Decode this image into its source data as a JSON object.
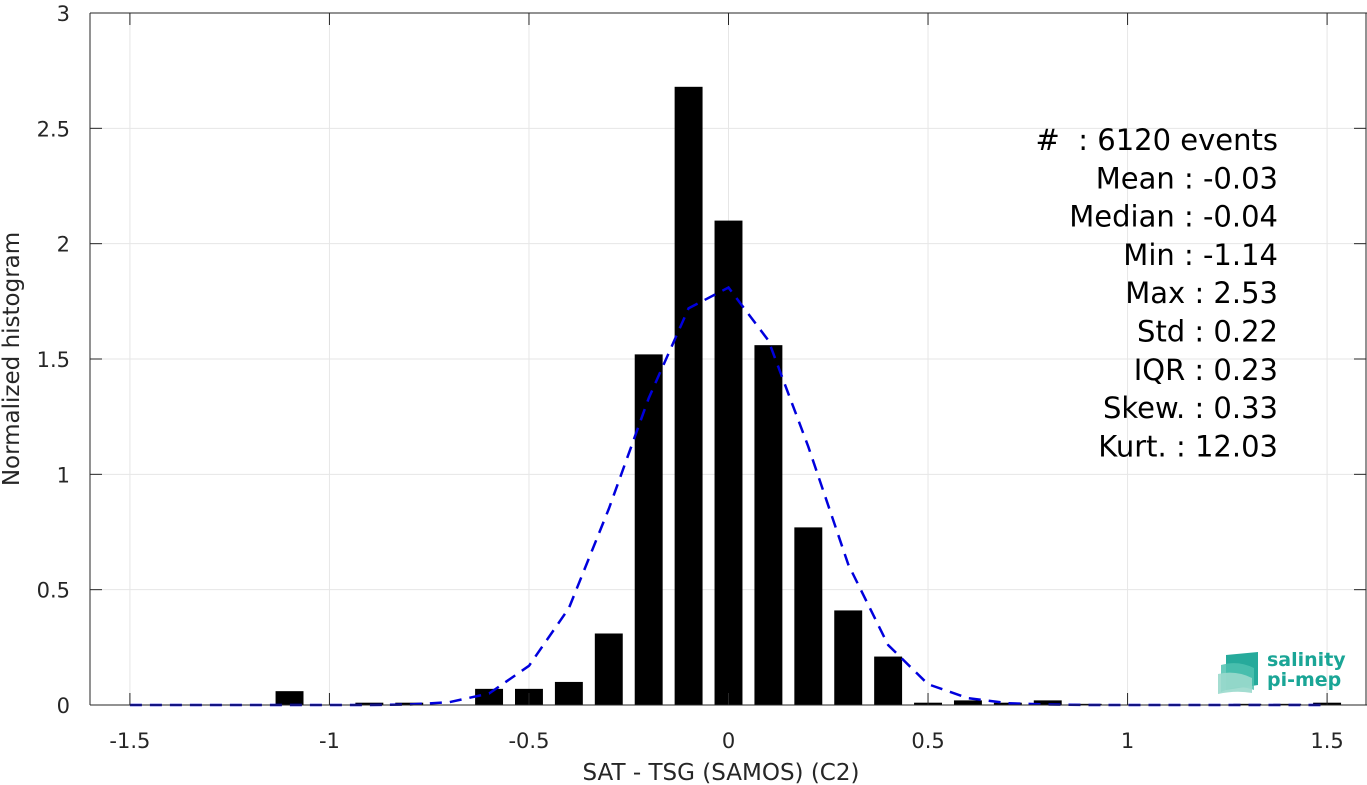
{
  "chart_data": {
    "type": "bar",
    "xlabel": "SAT - TSG (SAMOS) (C2)",
    "ylabel": "Normalized histogram",
    "xlim": [
      -1.6,
      1.6
    ],
    "ylim": [
      0,
      3
    ],
    "grid": true,
    "xticks": [
      "-1.5",
      "-1",
      "-0.5",
      "0",
      "0.5",
      "1",
      "1.5"
    ],
    "xtick_values": [
      -1.5,
      -1,
      -0.5,
      0,
      0.5,
      1,
      1.5
    ],
    "yticks": [
      "0",
      "0.5",
      "1",
      "1.5",
      "2",
      "2.5",
      "3"
    ],
    "ytick_values": [
      0,
      0.5,
      1,
      1.5,
      2,
      2.5,
      3
    ],
    "bar_width": 0.07,
    "bar_color": "#000000",
    "bars": [
      {
        "x": -1.1,
        "y": 0.06
      },
      {
        "x": -0.9,
        "y": 0.01
      },
      {
        "x": -0.8,
        "y": 0.01
      },
      {
        "x": -0.6,
        "y": 0.07
      },
      {
        "x": -0.5,
        "y": 0.07
      },
      {
        "x": -0.4,
        "y": 0.1
      },
      {
        "x": -0.3,
        "y": 0.31
      },
      {
        "x": -0.2,
        "y": 1.52
      },
      {
        "x": -0.1,
        "y": 2.68
      },
      {
        "x": 0.0,
        "y": 2.1
      },
      {
        "x": 0.1,
        "y": 1.56
      },
      {
        "x": 0.2,
        "y": 0.77
      },
      {
        "x": 0.3,
        "y": 0.41
      },
      {
        "x": 0.4,
        "y": 0.21
      },
      {
        "x": 0.5,
        "y": 0.01
      },
      {
        "x": 0.6,
        "y": 0.02
      },
      {
        "x": 0.7,
        "y": 0.01
      },
      {
        "x": 0.8,
        "y": 0.02
      },
      {
        "x": 0.9,
        "y": 0.005
      },
      {
        "x": 1.3,
        "y": 0.005
      },
      {
        "x": 1.4,
        "y": 0.005
      },
      {
        "x": 1.5,
        "y": 0.01
      }
    ],
    "fit_curve": {
      "style": "dashed",
      "color": "#0000dd",
      "x": [
        -1.5,
        -1.4,
        -1.3,
        -1.2,
        -1.1,
        -1.0,
        -0.9,
        -0.8,
        -0.7,
        -0.6,
        -0.5,
        -0.4,
        -0.3,
        -0.2,
        -0.1,
        0.0,
        0.1,
        0.2,
        0.3,
        0.4,
        0.5,
        0.6,
        0.7,
        0.8,
        0.9,
        1.0,
        1.1,
        1.2,
        1.3,
        1.4,
        1.5
      ],
      "y": [
        0,
        0,
        0,
        0,
        0,
        0,
        0,
        0.002,
        0.012,
        0.05,
        0.17,
        0.42,
        0.85,
        1.33,
        1.72,
        1.81,
        1.58,
        1.12,
        0.61,
        0.26,
        0.09,
        0.03,
        0.008,
        0.002,
        0,
        0,
        0,
        0,
        0,
        0,
        0
      ]
    },
    "stats_lines": [
      "#  : 6120 events",
      "Mean : -0.03",
      "Median : -0.04",
      "Min : -1.14",
      "Max : 2.53",
      "Std : 0.22",
      "IQR : 0.23",
      "Skew. : 0.33",
      "Kurt. : 12.03"
    ]
  },
  "logo": {
    "line1": "salinity",
    "line2": "pi-mep",
    "color": "#1aa596"
  }
}
